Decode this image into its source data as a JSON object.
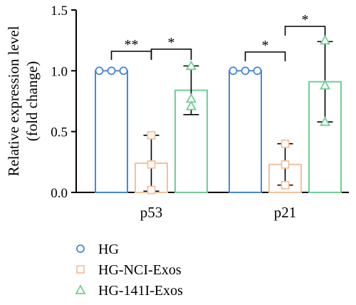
{
  "chart_data": {
    "type": "bar",
    "ylabel_lines": [
      "Relative expression level",
      "(fold change)"
    ],
    "categories": [
      "p53",
      "p21"
    ],
    "ylim": [
      0,
      1.5
    ],
    "yticks": [
      0.0,
      0.5,
      1.0,
      1.5
    ],
    "ytick_labels": [
      "0.0",
      "0.5",
      "1.0",
      "1.5"
    ],
    "series": [
      {
        "name": "HG",
        "color": "#4a86d6",
        "marker": "circle",
        "values": [
          1.0,
          1.0
        ],
        "errors": [
          0,
          0
        ],
        "points": [
          [
            1.0,
            1.0,
            1.0
          ],
          [
            1.0,
            1.0,
            1.0
          ]
        ]
      },
      {
        "name": "HG-NCI-Exos",
        "color": "#f2c29e",
        "marker": "square",
        "values": [
          0.24,
          0.23
        ],
        "errors": [
          0.23,
          0.17
        ],
        "points": [
          [
            0.47,
            0.23,
            0.02
          ],
          [
            0.4,
            0.23,
            0.06
          ]
        ]
      },
      {
        "name": "HG-141I-Exos",
        "color": "#6fcf97",
        "marker": "triangle",
        "values": [
          0.84,
          0.91
        ],
        "errors": [
          0.2,
          0.33
        ],
        "points": [
          [
            1.04,
            0.77,
            0.71
          ],
          [
            1.25,
            0.88,
            0.58
          ]
        ]
      }
    ],
    "significance": [
      {
        "group": "p53",
        "from": 0,
        "to": 1,
        "label": "**"
      },
      {
        "group": "p53",
        "from": 1,
        "to": 2,
        "label": "*"
      },
      {
        "group": "p21",
        "from": 0,
        "to": 1,
        "label": "*"
      },
      {
        "group": "p21",
        "from": 1,
        "to": 2,
        "label": "*"
      }
    ],
    "legend_position": "bottom-left",
    "grid": false
  }
}
